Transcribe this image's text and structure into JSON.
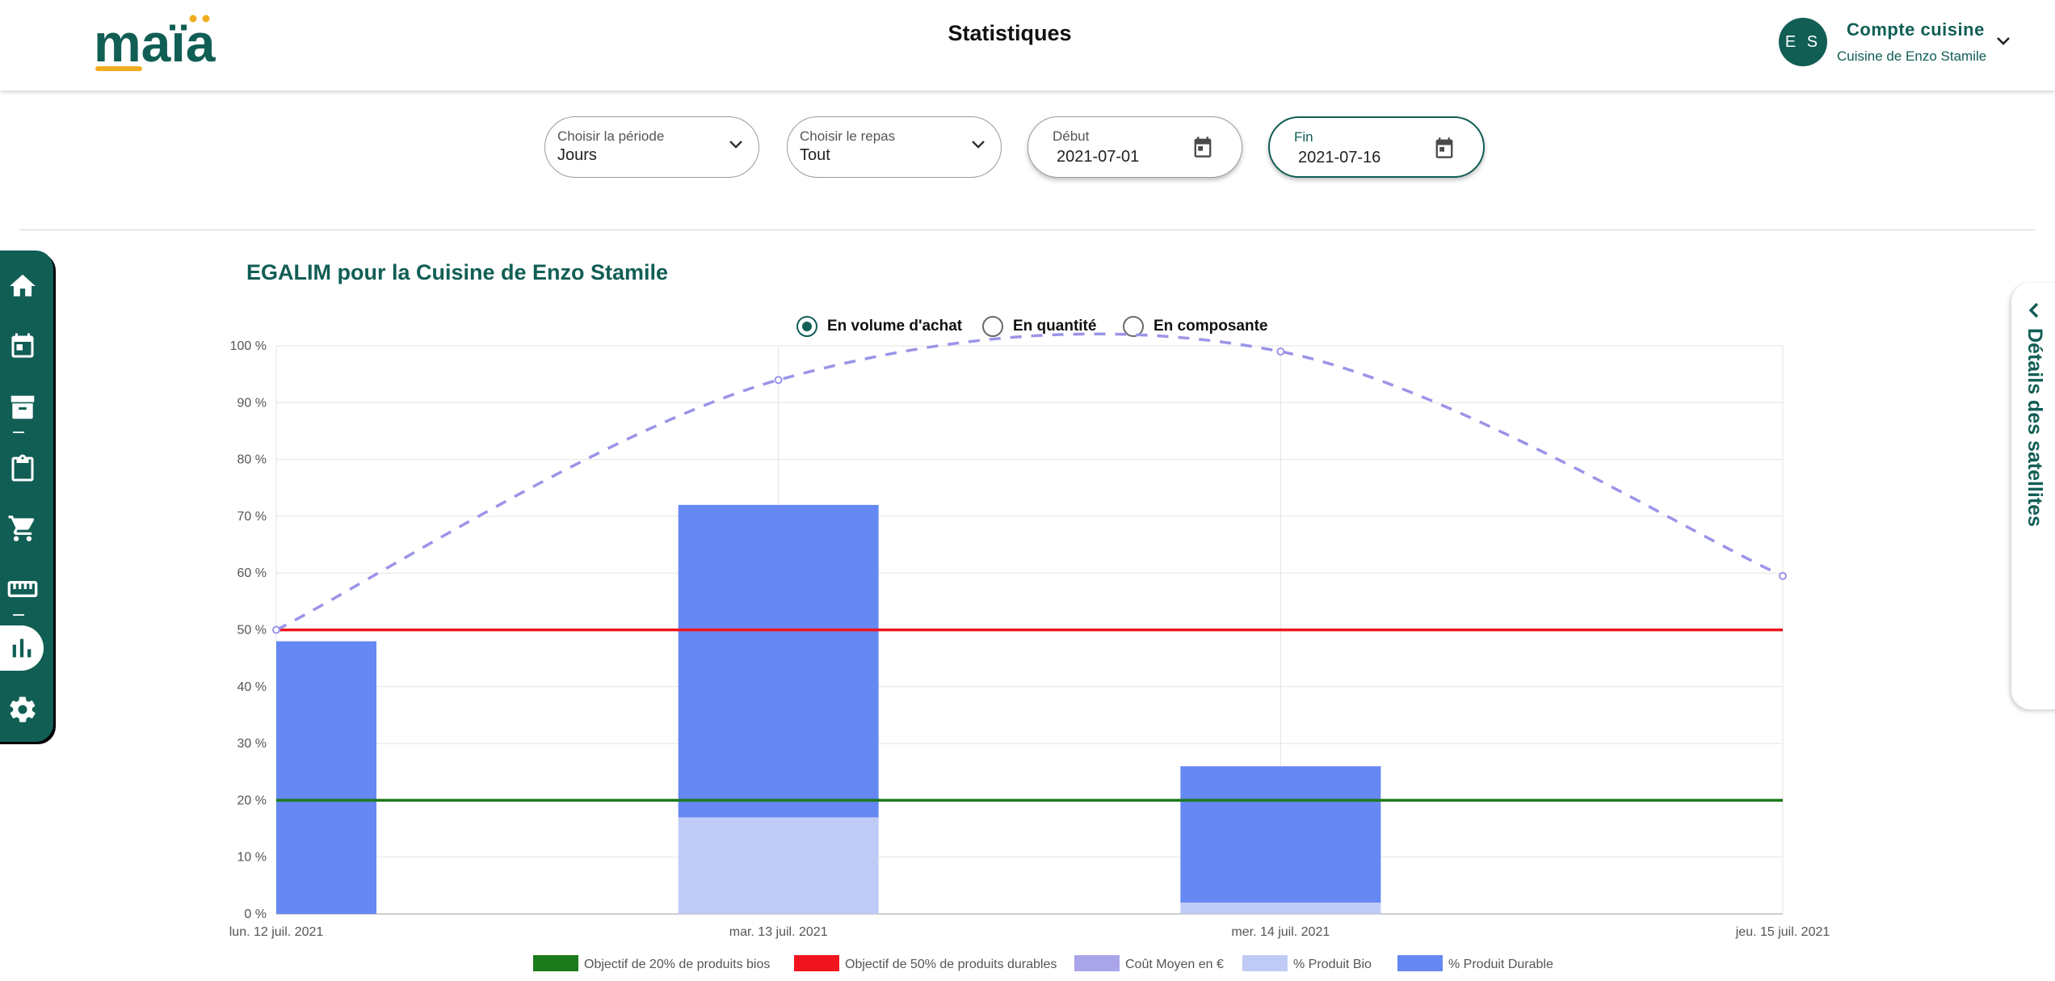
{
  "header": {
    "logo_text": "maïa",
    "title": "Statistiques",
    "user": {
      "initials": "E S",
      "account_label": "Compte cuisine",
      "kitchen_name": "Cuisine de Enzo Stamile"
    }
  },
  "filters": {
    "period": {
      "label": "Choisir la période",
      "value": "Jours"
    },
    "meal": {
      "label": "Choisir le repas",
      "value": "Tout"
    },
    "start": {
      "label": "Début",
      "value": "2021-07-01"
    },
    "end": {
      "label": "Fin",
      "value": "2021-07-16"
    }
  },
  "sidebar": {
    "items": [
      {
        "icon": "home-icon"
      },
      {
        "icon": "calendar-icon"
      },
      {
        "icon": "archive-icon"
      },
      {
        "icon": "clipboard-icon"
      },
      {
        "icon": "cart-icon"
      },
      {
        "icon": "ruler-icon"
      },
      {
        "icon": "bar-chart-icon",
        "active": true
      },
      {
        "icon": "gear-icon"
      }
    ]
  },
  "right_panel": {
    "label": "Détails des satellites"
  },
  "chart_section": {
    "title": "EGALIM pour la Cuisine de Enzo Stamile",
    "modes": [
      {
        "label": "En volume d'achat",
        "checked": true
      },
      {
        "label": "En quantité",
        "checked": false
      },
      {
        "label": "En composante",
        "checked": false
      }
    ]
  },
  "colors": {
    "brand": "#115e55",
    "bio_goal": "#1b7a1b",
    "durable_goal": "#f0141e",
    "avg_cost": "#9b94e8",
    "bio": "#c0cbf5",
    "durable": "#6688f2"
  },
  "chart_data": {
    "type": "bar",
    "categories": [
      "lun. 12 juil. 2021",
      "mar. 13 juil. 2021",
      "mer. 14 juil. 2021",
      "jeu. 15 juil. 2021"
    ],
    "y_ticks": [
      "0 %",
      "10 %",
      "20 %",
      "30 %",
      "40 %",
      "50 %",
      "60 %",
      "70 %",
      "80 %",
      "90 %",
      "100 %"
    ],
    "ylim": [
      0,
      100
    ],
    "stacked": true,
    "grid": true,
    "legend_position": "bottom",
    "series": [
      {
        "name": "% Produit Bio",
        "type": "bar",
        "color": "#c0cbf5",
        "values": [
          0,
          17,
          2,
          0
        ]
      },
      {
        "name": "% Produit Durable",
        "type": "bar",
        "color": "#6688f2",
        "values": [
          48,
          55,
          24,
          0
        ]
      },
      {
        "name": "Coût Moyen en €",
        "type": "dashed-line",
        "color": "#9b94e8",
        "values": [
          50,
          94,
          99,
          59.5
        ]
      },
      {
        "name": "Objectif de 20% de produits bios",
        "type": "hline",
        "color": "#1b7a1b",
        "value": 20
      },
      {
        "name": "Objectif de 50% de produits durables",
        "type": "hline",
        "color": "#f0141e",
        "value": 50
      }
    ],
    "legend": [
      {
        "label": "Objectif de 20% de produits bios",
        "color": "#1b7a1b"
      },
      {
        "label": "Objectif de 50% de produits durables",
        "color": "#f0141e"
      },
      {
        "label": "Coût Moyen en €",
        "color": "#9b94e8"
      },
      {
        "label": "% Produit Bio",
        "color": "#c0cbf5"
      },
      {
        "label": "% Produit Durable",
        "color": "#6688f2"
      }
    ]
  }
}
